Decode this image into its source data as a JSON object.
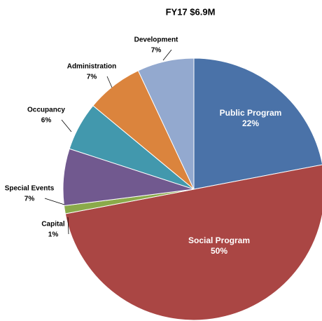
{
  "chart_data": {
    "type": "pie",
    "title": "FY17 $6.9M",
    "categories": [
      "Public Program",
      "Social Program",
      "Capital",
      "Special Events",
      "Occupancy",
      "Administration",
      "Development"
    ],
    "values": [
      22,
      50,
      1,
      7,
      6,
      7,
      7
    ],
    "value_labels": [
      "22%",
      "50%",
      "1%",
      "7%",
      "6%",
      "7%",
      "7%"
    ],
    "colors": [
      "#4a72a8",
      "#aa4644",
      "#8aaa4a",
      "#71598f",
      "#4298ad",
      "#db843d",
      "#93a9cf"
    ]
  }
}
